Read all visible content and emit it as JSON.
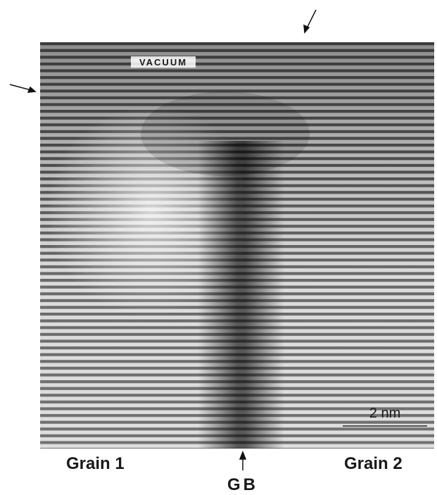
{
  "labels": {
    "vacuum": "VACUUM",
    "scale": "2 nm",
    "grain1": "Grain 1",
    "grain2": "Grain 2",
    "gb": "GB"
  }
}
